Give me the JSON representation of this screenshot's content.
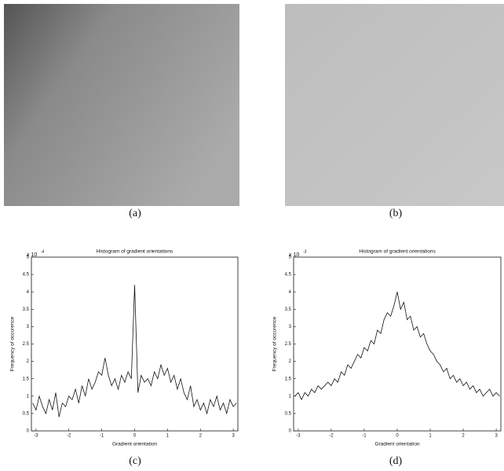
{
  "figure": {
    "captions": [
      "(a)",
      "(b)",
      "(c)",
      "(d)"
    ]
  },
  "chart_data": [
    {
      "type": "line",
      "title": "Histogram of gradient orientations",
      "xlabel": "Gradient orientation",
      "ylabel": "Frequency of occurence",
      "y_multiplier": "x 10",
      "y_multiplier_exp": "-4",
      "xlim": [
        -3.14,
        3.14
      ],
      "ylim": [
        0,
        5
      ],
      "xticks": [
        -3,
        -2,
        -1,
        0,
        1,
        2,
        3
      ],
      "yticks": [
        0,
        0.5,
        1,
        1.5,
        2,
        2.5,
        3,
        3.5,
        4,
        4.5,
        5
      ],
      "x": [
        -3.1,
        -3.0,
        -2.9,
        -2.8,
        -2.7,
        -2.6,
        -2.5,
        -2.4,
        -2.3,
        -2.2,
        -2.1,
        -2.0,
        -1.9,
        -1.8,
        -1.7,
        -1.6,
        -1.5,
        -1.4,
        -1.3,
        -1.2,
        -1.1,
        -1.0,
        -0.9,
        -0.8,
        -0.7,
        -0.6,
        -0.5,
        -0.4,
        -0.3,
        -0.2,
        -0.1,
        0,
        0.1,
        0.2,
        0.3,
        0.4,
        0.5,
        0.6,
        0.7,
        0.8,
        0.9,
        1.0,
        1.1,
        1.2,
        1.3,
        1.4,
        1.5,
        1.6,
        1.7,
        1.8,
        1.9,
        2.0,
        2.1,
        2.2,
        2.3,
        2.4,
        2.5,
        2.6,
        2.7,
        2.8,
        2.9,
        3.0,
        3.1
      ],
      "series": [
        {
          "color": "#111111",
          "values": [
            0.8,
            0.6,
            1.0,
            0.7,
            0.5,
            0.9,
            0.6,
            1.1,
            0.4,
            0.8,
            0.7,
            1.0,
            0.9,
            1.2,
            0.8,
            1.3,
            1.0,
            1.5,
            1.2,
            1.4,
            1.7,
            1.6,
            2.1,
            1.6,
            1.3,
            1.5,
            1.2,
            1.6,
            1.4,
            1.7,
            1.5,
            4.2,
            1.1,
            1.6,
            1.4,
            1.5,
            1.3,
            1.7,
            1.5,
            1.9,
            1.6,
            1.8,
            1.4,
            1.6,
            1.2,
            1.5,
            1.1,
            0.9,
            1.3,
            0.7,
            0.9,
            0.6,
            0.8,
            0.5,
            0.9,
            0.7,
            1.0,
            0.6,
            0.8,
            0.5,
            0.9,
            0.7,
            0.8
          ]
        }
      ]
    },
    {
      "type": "line",
      "title": "Histogram of gradient orientations",
      "xlabel": "Gradient orientation",
      "ylabel": "Frequency of occurence",
      "y_multiplier": "x 10",
      "y_multiplier_exp": "-3",
      "xlim": [
        -3.14,
        3.14
      ],
      "ylim": [
        0,
        5
      ],
      "xticks": [
        -3,
        -2,
        -1,
        0,
        1,
        2,
        3
      ],
      "yticks": [
        0,
        0.5,
        1,
        1.5,
        2,
        2.5,
        3,
        3.5,
        4,
        4.5,
        5
      ],
      "x": [
        -3.1,
        -3.0,
        -2.9,
        -2.8,
        -2.7,
        -2.6,
        -2.5,
        -2.4,
        -2.3,
        -2.2,
        -2.1,
        -2.0,
        -1.9,
        -1.8,
        -1.7,
        -1.6,
        -1.5,
        -1.4,
        -1.3,
        -1.2,
        -1.1,
        -1.0,
        -0.9,
        -0.8,
        -0.7,
        -0.6,
        -0.5,
        -0.4,
        -0.3,
        -0.2,
        -0.1,
        0,
        0.1,
        0.2,
        0.3,
        0.4,
        0.5,
        0.6,
        0.7,
        0.8,
        0.9,
        1.0,
        1.1,
        1.2,
        1.3,
        1.4,
        1.5,
        1.6,
        1.7,
        1.8,
        1.9,
        2.0,
        2.1,
        2.2,
        2.3,
        2.4,
        2.5,
        2.6,
        2.7,
        2.8,
        2.9,
        3.0,
        3.1
      ],
      "series": [
        {
          "color": "#111111",
          "values": [
            1.0,
            1.1,
            0.9,
            1.1,
            1.0,
            1.2,
            1.1,
            1.3,
            1.2,
            1.3,
            1.4,
            1.3,
            1.5,
            1.4,
            1.7,
            1.6,
            1.9,
            1.8,
            2.0,
            2.2,
            2.1,
            2.4,
            2.3,
            2.6,
            2.5,
            2.9,
            2.8,
            3.2,
            3.4,
            3.3,
            3.6,
            4.0,
            3.5,
            3.7,
            3.2,
            3.3,
            2.9,
            3.0,
            2.7,
            2.8,
            2.5,
            2.3,
            2.2,
            2.0,
            1.9,
            1.7,
            1.8,
            1.5,
            1.6,
            1.4,
            1.5,
            1.3,
            1.4,
            1.2,
            1.3,
            1.1,
            1.2,
            1.0,
            1.1,
            1.2,
            1.0,
            1.1,
            1.0
          ]
        }
      ]
    }
  ]
}
